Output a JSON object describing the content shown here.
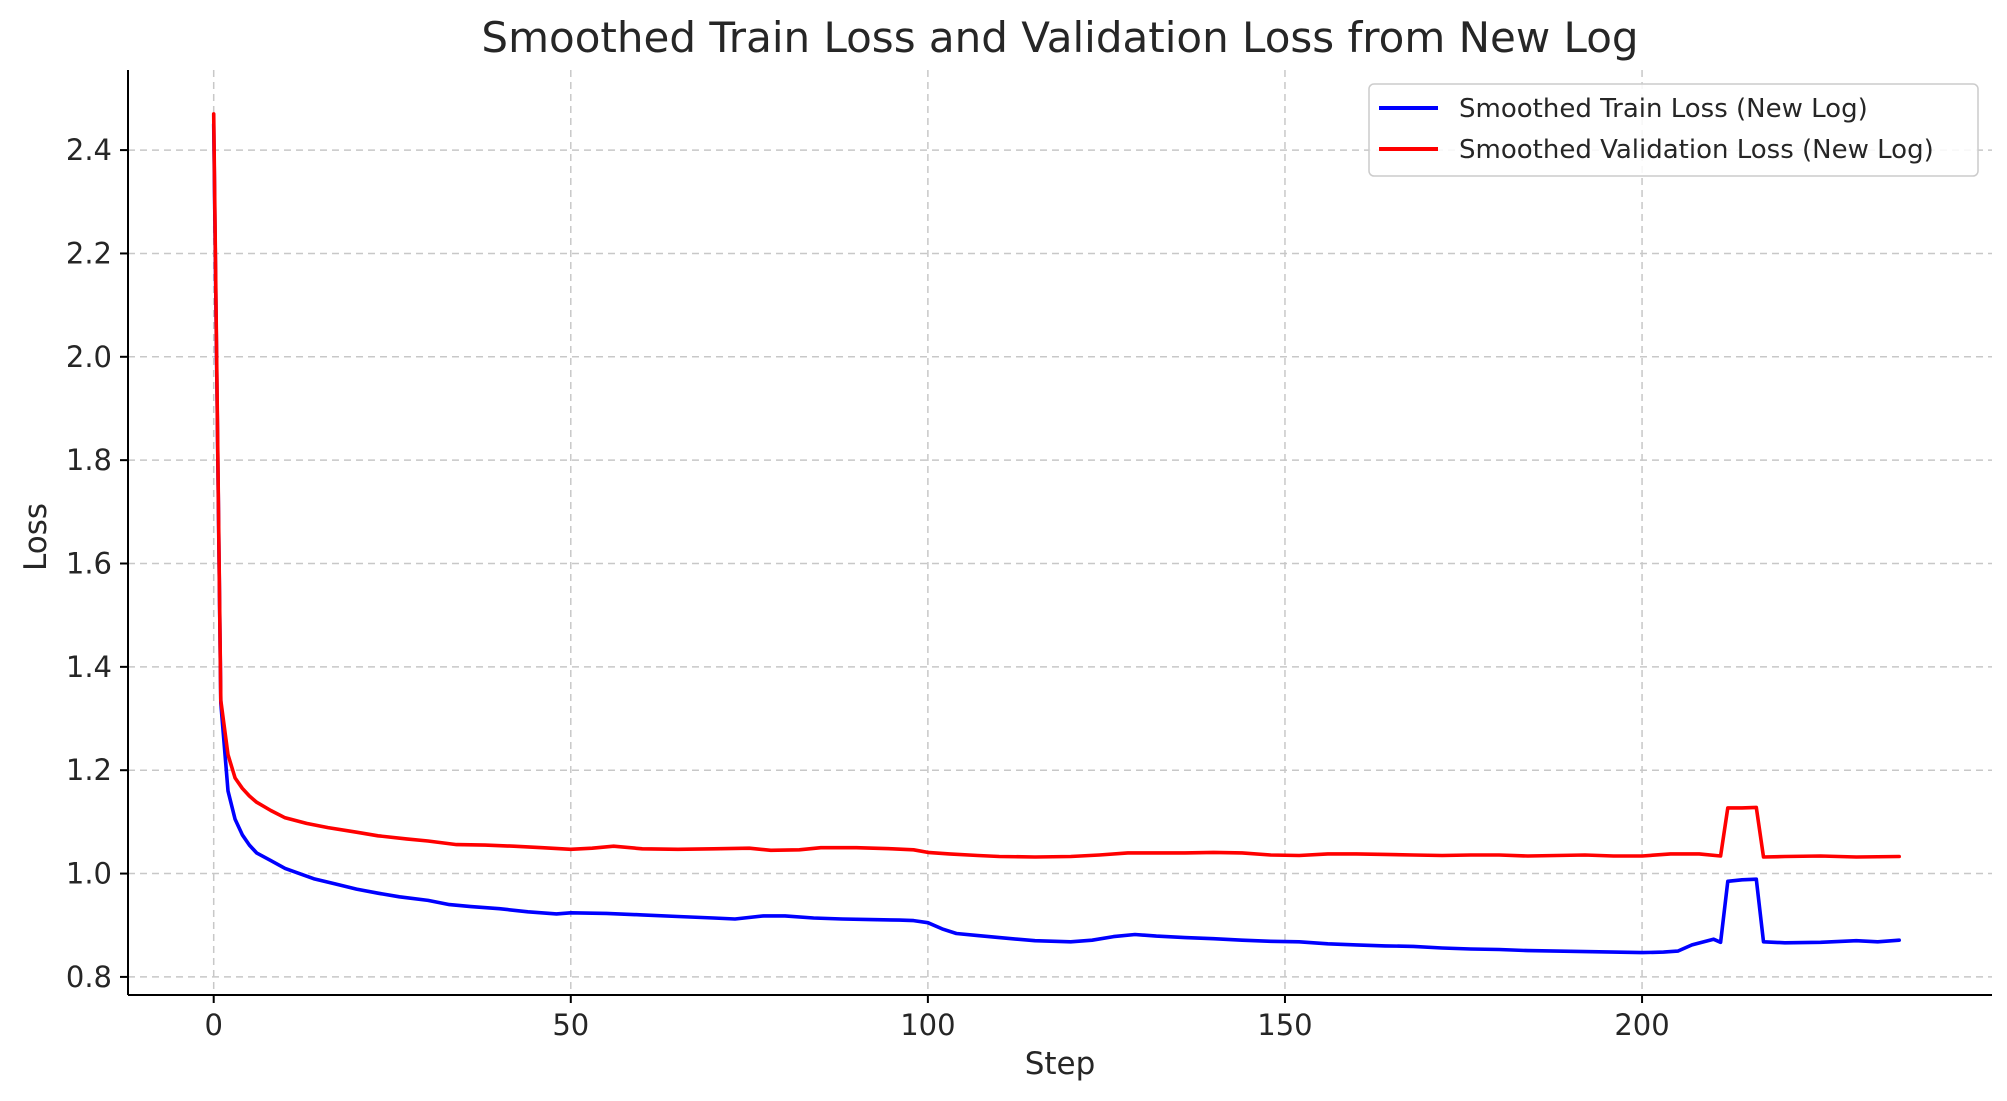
{
  "chart_data": {
    "type": "line",
    "title": "Smoothed Train Loss and Validation Loss from New Log",
    "xlabel": "Step",
    "ylabel": "Loss",
    "xlim": [
      -12,
      249
    ],
    "ylim": [
      0.765,
      2.555
    ],
    "xticks": [
      0,
      50,
      100,
      150,
      200
    ],
    "yticks": [
      0.8,
      1.0,
      1.2,
      1.4,
      1.6,
      1.8,
      2.0,
      2.2,
      2.4
    ],
    "grid": true,
    "legend_position": "top-right",
    "series": [
      {
        "name": "Smoothed Train Loss (New Log)",
        "color": "#0000ff",
        "points": [
          [
            0,
            2.45
          ],
          [
            1,
            1.33
          ],
          [
            2,
            1.16
          ],
          [
            3,
            1.105
          ],
          [
            4,
            1.075
          ],
          [
            5,
            1.055
          ],
          [
            6,
            1.04
          ],
          [
            8,
            1.025
          ],
          [
            10,
            1.01
          ],
          [
            12,
            1.0
          ],
          [
            14,
            0.99
          ],
          [
            17,
            0.98
          ],
          [
            20,
            0.97
          ],
          [
            23,
            0.962
          ],
          [
            26,
            0.955
          ],
          [
            30,
            0.948
          ],
          [
            33,
            0.94
          ],
          [
            36,
            0.936
          ],
          [
            40,
            0.932
          ],
          [
            44,
            0.926
          ],
          [
            48,
            0.922
          ],
          [
            50,
            0.924
          ],
          [
            55,
            0.923
          ],
          [
            60,
            0.92
          ],
          [
            65,
            0.917
          ],
          [
            70,
            0.914
          ],
          [
            73,
            0.912
          ],
          [
            77,
            0.918
          ],
          [
            80,
            0.918
          ],
          [
            84,
            0.914
          ],
          [
            88,
            0.912
          ],
          [
            92,
            0.911
          ],
          [
            96,
            0.91
          ],
          [
            98,
            0.909
          ],
          [
            100,
            0.905
          ],
          [
            102,
            0.893
          ],
          [
            104,
            0.884
          ],
          [
            107,
            0.88
          ],
          [
            110,
            0.876
          ],
          [
            115,
            0.87
          ],
          [
            120,
            0.868
          ],
          [
            123,
            0.871
          ],
          [
            126,
            0.878
          ],
          [
            129,
            0.882
          ],
          [
            132,
            0.879
          ],
          [
            136,
            0.876
          ],
          [
            140,
            0.874
          ],
          [
            144,
            0.871
          ],
          [
            148,
            0.869
          ],
          [
            152,
            0.868
          ],
          [
            156,
            0.864
          ],
          [
            160,
            0.862
          ],
          [
            164,
            0.86
          ],
          [
            168,
            0.859
          ],
          [
            172,
            0.856
          ],
          [
            176,
            0.854
          ],
          [
            180,
            0.853
          ],
          [
            184,
            0.851
          ],
          [
            188,
            0.85
          ],
          [
            192,
            0.849
          ],
          [
            196,
            0.848
          ],
          [
            200,
            0.847
          ],
          [
            203,
            0.848
          ],
          [
            205,
            0.85
          ],
          [
            207,
            0.862
          ],
          [
            210,
            0.873
          ],
          [
            211,
            0.867
          ],
          [
            212,
            0.985
          ],
          [
            214,
            0.988
          ],
          [
            216,
            0.989
          ],
          [
            217,
            0.868
          ],
          [
            220,
            0.866
          ],
          [
            225,
            0.867
          ],
          [
            230,
            0.87
          ],
          [
            233,
            0.868
          ],
          [
            236,
            0.871
          ]
        ]
      },
      {
        "name": "Smoothed Validation Loss (New Log)",
        "color": "#ff0000",
        "points": [
          [
            0,
            2.47
          ],
          [
            1,
            1.335
          ],
          [
            2,
            1.23
          ],
          [
            3,
            1.185
          ],
          [
            4,
            1.165
          ],
          [
            5,
            1.15
          ],
          [
            6,
            1.138
          ],
          [
            8,
            1.122
          ],
          [
            10,
            1.108
          ],
          [
            13,
            1.097
          ],
          [
            16,
            1.089
          ],
          [
            20,
            1.08
          ],
          [
            23,
            1.073
          ],
          [
            27,
            1.067
          ],
          [
            30,
            1.063
          ],
          [
            34,
            1.056
          ],
          [
            38,
            1.055
          ],
          [
            42,
            1.053
          ],
          [
            46,
            1.05
          ],
          [
            50,
            1.047
          ],
          [
            53,
            1.049
          ],
          [
            56,
            1.053
          ],
          [
            60,
            1.048
          ],
          [
            65,
            1.047
          ],
          [
            70,
            1.048
          ],
          [
            75,
            1.049
          ],
          [
            78,
            1.045
          ],
          [
            82,
            1.046
          ],
          [
            85,
            1.05
          ],
          [
            90,
            1.05
          ],
          [
            95,
            1.048
          ],
          [
            98,
            1.046
          ],
          [
            100,
            1.041
          ],
          [
            103,
            1.038
          ],
          [
            107,
            1.035
          ],
          [
            110,
            1.033
          ],
          [
            115,
            1.032
          ],
          [
            120,
            1.033
          ],
          [
            124,
            1.036
          ],
          [
            128,
            1.04
          ],
          [
            132,
            1.04
          ],
          [
            136,
            1.04
          ],
          [
            140,
            1.041
          ],
          [
            144,
            1.04
          ],
          [
            148,
            1.036
          ],
          [
            152,
            1.035
          ],
          [
            156,
            1.038
          ],
          [
            160,
            1.038
          ],
          [
            164,
            1.037
          ],
          [
            168,
            1.036
          ],
          [
            172,
            1.035
          ],
          [
            176,
            1.036
          ],
          [
            180,
            1.036
          ],
          [
            184,
            1.034
          ],
          [
            188,
            1.035
          ],
          [
            192,
            1.036
          ],
          [
            196,
            1.034
          ],
          [
            200,
            1.034
          ],
          [
            204,
            1.038
          ],
          [
            208,
            1.038
          ],
          [
            211,
            1.034
          ],
          [
            212,
            1.127
          ],
          [
            214,
            1.127
          ],
          [
            216,
            1.128
          ],
          [
            217,
            1.032
          ],
          [
            220,
            1.033
          ],
          [
            225,
            1.034
          ],
          [
            230,
            1.032
          ],
          [
            236,
            1.033
          ]
        ]
      }
    ]
  }
}
